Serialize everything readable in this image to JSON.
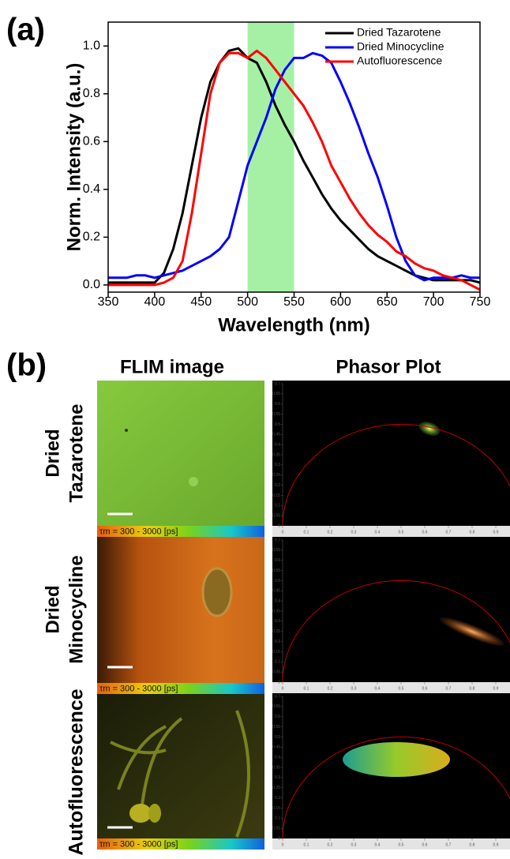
{
  "panel_labels": [
    "(a)",
    "(b)"
  ],
  "chart_data": {
    "type": "line",
    "x_label": "Wavelength (nm)",
    "y_label": "Norm. Intensity (a.u.)",
    "x": [
      350,
      360,
      370,
      380,
      390,
      400,
      410,
      420,
      430,
      440,
      450,
      460,
      470,
      480,
      490,
      500,
      510,
      520,
      530,
      540,
      550,
      560,
      570,
      580,
      590,
      600,
      610,
      620,
      630,
      640,
      650,
      660,
      670,
      680,
      690,
      700,
      710,
      720,
      730,
      740,
      750
    ],
    "series": [
      {
        "name": "Dried Tazarotene",
        "color": "#000000",
        "values": [
          0.01,
          0.01,
          0.01,
          0.01,
          0.01,
          0.01,
          0.05,
          0.15,
          0.3,
          0.5,
          0.7,
          0.85,
          0.93,
          0.98,
          0.99,
          0.95,
          0.93,
          0.85,
          0.75,
          0.67,
          0.6,
          0.52,
          0.45,
          0.38,
          0.32,
          0.27,
          0.23,
          0.19,
          0.15,
          0.12,
          0.1,
          0.08,
          0.06,
          0.04,
          0.03,
          0.02,
          0.02,
          0.02,
          0.02,
          0.02,
          0.01
        ]
      },
      {
        "name": "Dried Minocycline",
        "color": "#0000ff",
        "values": [
          0.03,
          0.03,
          0.03,
          0.04,
          0.04,
          0.03,
          0.04,
          0.05,
          0.06,
          0.08,
          0.1,
          0.12,
          0.15,
          0.2,
          0.35,
          0.5,
          0.6,
          0.7,
          0.82,
          0.9,
          0.95,
          0.95,
          0.97,
          0.96,
          0.93,
          0.85,
          0.76,
          0.66,
          0.55,
          0.45,
          0.33,
          0.2,
          0.1,
          0.04,
          0.02,
          0.03,
          0.03,
          0.03,
          0.04,
          0.03,
          0.03
        ]
      },
      {
        "name": "Autofluorescence",
        "color": "#ff0000",
        "values": [
          0,
          0,
          0,
          0,
          0,
          0,
          0.01,
          0.03,
          0.1,
          0.3,
          0.55,
          0.8,
          0.93,
          0.97,
          0.97,
          0.95,
          0.98,
          0.95,
          0.9,
          0.85,
          0.8,
          0.75,
          0.68,
          0.6,
          0.5,
          0.43,
          0.36,
          0.3,
          0.25,
          0.21,
          0.18,
          0.14,
          0.12,
          0.09,
          0.07,
          0.06,
          0.04,
          0.03,
          0.02,
          0,
          -0.02
        ]
      }
    ],
    "highlight": {
      "xmin": 500,
      "xmax": 550,
      "color": "#a6f0a6"
    },
    "xlim": [
      350,
      750
    ],
    "xticks": [
      350,
      400,
      450,
      500,
      550,
      600,
      650,
      700,
      750
    ],
    "ylim": [
      -0.03,
      1.1
    ],
    "yticks": [
      {
        "value": 0,
        "label": "0.0"
      },
      0.2,
      0.4,
      0.6,
      0.8,
      {
        "value": 1,
        "label": "1.0"
      }
    ],
    "legend": "upper right"
  },
  "panel_b": {
    "column_headers": [
      "FLIM image",
      "Phasor Plot"
    ],
    "rows": [
      {
        "label": [
          "Dried",
          "Tazarotene"
        ],
        "colorbar": "τm = 300 - 3000 [ps]"
      },
      {
        "label": [
          "Dried",
          "Minocycline"
        ],
        "colorbar": "τm = 300 - 3000 [ps]"
      },
      {
        "label": [
          "Autofluorescence"
        ],
        "colorbar": "τm = 300 - 3000 [ps]"
      }
    ],
    "phasor_axes": {
      "xlim": [
        0,
        1
      ],
      "ylim": [
        0,
        0.7
      ],
      "xticks": [
        0,
        0.1,
        0.2,
        0.3,
        0.4,
        0.5,
        0.6,
        0.7,
        0.8,
        0.9
      ],
      "yticks": [
        0,
        0.05,
        0.1,
        0.15,
        0.2,
        0.25,
        0.3,
        0.35,
        0.4,
        0.45,
        0.5,
        0.55,
        0.6,
        0.65,
        0.7
      ]
    }
  }
}
